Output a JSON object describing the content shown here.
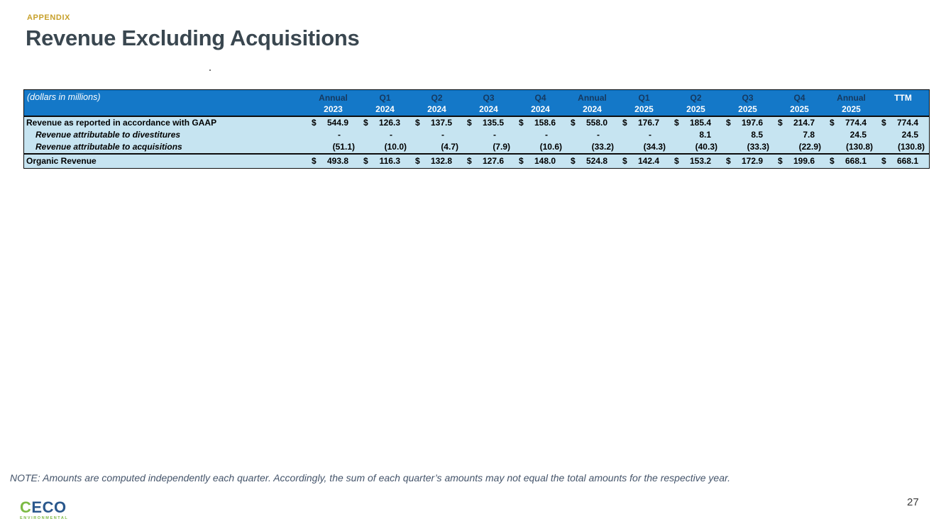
{
  "slide": {
    "eyebrow": "APPENDIX",
    "title": "Revenue Excluding Acquisitions",
    "note": "NOTE: Amounts are computed independently each quarter. Accordingly, the sum of each quarter’s amounts may not equal the total amounts for the respective year.",
    "page_number": "27"
  },
  "logo": {
    "brand": "CECO",
    "first_letter": "C",
    "rest": "ECO",
    "subtitle": "ENVIRONMENTAL"
  },
  "colors": {
    "header_blue": "#1478C8",
    "row_light_blue": "#C6E4F1",
    "header_period_navy": "#16395F",
    "eyebrow_gold": "#C7A02A",
    "title_slate": "#3A4750",
    "note_slate": "#44546A",
    "logo_green": "#7CBA44",
    "logo_navy": "#2A588C"
  },
  "table": {
    "unit_label": "(dollars in millions)",
    "columns": [
      {
        "period": "Annual",
        "year": "2023"
      },
      {
        "period": "Q1",
        "year": "2024"
      },
      {
        "period": "Q2",
        "year": "2024"
      },
      {
        "period": "Q3",
        "year": "2024"
      },
      {
        "period": "Q4",
        "year": "2024"
      },
      {
        "period": "Annual",
        "year": "2024"
      },
      {
        "period": "Q1",
        "year": "2025"
      },
      {
        "period": "Q2",
        "year": "2025"
      },
      {
        "period": "Q3",
        "year": "2025"
      },
      {
        "period": "Q4",
        "year": "2025"
      },
      {
        "period": "Annual",
        "year": "2025"
      },
      {
        "period": "",
        "year": "TTM"
      }
    ],
    "rows": [
      {
        "label": "Revenue as reported in accordance with GAAP",
        "style": "plain",
        "dollar": true,
        "values": [
          "544.9",
          "126.3",
          "137.5",
          "135.5",
          "158.6",
          "558.0",
          "176.7",
          "185.4",
          "197.6",
          "214.7",
          "774.4",
          "774.4"
        ]
      },
      {
        "label": "Revenue attributable to divestitures",
        "style": "indent-italic",
        "dollar": false,
        "values": [
          "-",
          "-",
          "-",
          "-",
          "-",
          "-",
          "-",
          "8.1",
          "8.5",
          "7.8",
          "24.5",
          "24.5"
        ]
      },
      {
        "label": "Revenue attributable to acquisitions",
        "style": "indent-italic",
        "dollar": false,
        "values": [
          "(51.1)",
          "(10.0)",
          "(4.7)",
          "(7.9)",
          "(10.6)",
          "(33.2)",
          "(34.3)",
          "(40.3)",
          "(33.3)",
          "(22.9)",
          "(130.8)",
          "(130.8)"
        ]
      }
    ],
    "total_row": {
      "label": "Organic Revenue",
      "style": "plain",
      "dollar": true,
      "values": [
        "493.8",
        "116.3",
        "132.8",
        "127.6",
        "148.0",
        "524.8",
        "142.4",
        "153.2",
        "172.9",
        "199.6",
        "668.1",
        "668.1"
      ]
    }
  }
}
